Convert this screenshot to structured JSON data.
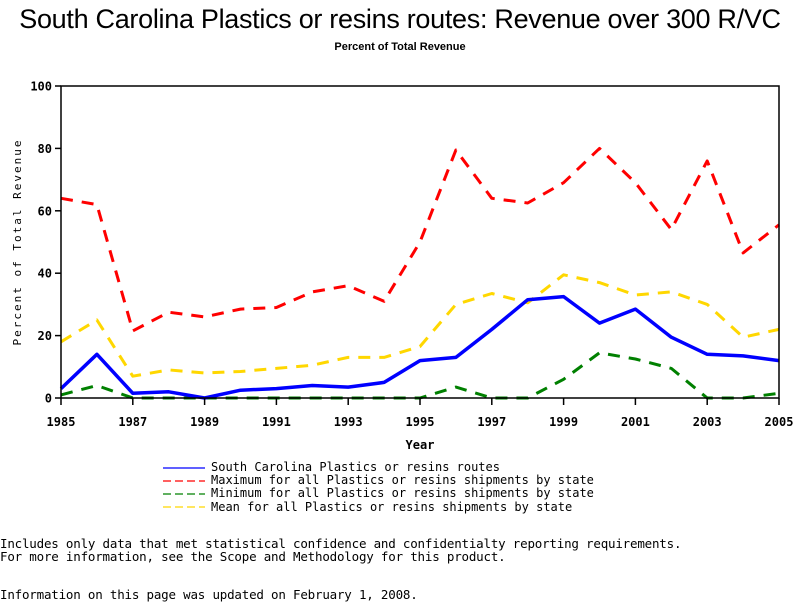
{
  "chart_data": {
    "type": "line",
    "title": "South Carolina Plastics or resins routes: Revenue over 300 R/VC",
    "subtitle": "Percent of Total Revenue",
    "xlabel": "Year",
    "ylabel": "Percent of Total Revenue",
    "xlim": [
      1985,
      2005
    ],
    "ylim": [
      0,
      100
    ],
    "x_ticks": [
      "1985",
      "1987",
      "1989",
      "1991",
      "1993",
      "1995",
      "1997",
      "1999",
      "2001",
      "2003",
      "2005"
    ],
    "y_ticks": [
      "0",
      "20",
      "40",
      "60",
      "80",
      "100"
    ],
    "x": [
      1985,
      1986,
      1987,
      1988,
      1989,
      1990,
      1991,
      1992,
      1993,
      1994,
      1995,
      1996,
      1997,
      1998,
      1999,
      2000,
      2001,
      2002,
      2003,
      2004,
      2005
    ],
    "grid": false,
    "legend_position": "bottom",
    "series": [
      {
        "name": "South Carolina Plastics or resins routes",
        "color": "#0000ff",
        "style": "solid",
        "values": [
          3,
          14,
          1.5,
          2,
          0,
          2.5,
          3,
          4,
          3.5,
          5,
          12,
          13,
          22,
          31.5,
          32.5,
          24,
          28.5,
          19.5,
          14,
          13.5,
          12
        ]
      },
      {
        "name": "Maximum for all Plastics or resins shipments by state",
        "color": "#ff0000",
        "style": "dashed",
        "values": [
          64,
          62,
          21.5,
          27.5,
          26,
          28.5,
          29,
          34,
          36,
          31,
          50,
          79.5,
          64,
          62.5,
          69,
          80,
          69,
          54,
          76,
          46.5,
          55.5
        ]
      },
      {
        "name": "Minimum for all Plastics or resins shipments by state",
        "color": "#008000",
        "style": "dashed",
        "values": [
          1,
          4,
          0,
          0,
          0,
          0,
          0,
          0,
          0,
          0,
          0,
          3.5,
          0,
          0,
          6,
          14.5,
          12.5,
          9.5,
          0,
          0,
          1.5
        ]
      },
      {
        "name": "Mean for all Plastics or resins shipments by state",
        "color": "#ffd700",
        "style": "dashed",
        "values": [
          18,
          25,
          7,
          9,
          8,
          8.5,
          9.5,
          10.5,
          13,
          13,
          16.5,
          30,
          33.5,
          30.5,
          39.5,
          37,
          33,
          34,
          30,
          19.5,
          22
        ]
      }
    ]
  },
  "notes": {
    "line1": "Includes only data that met statistical confidence and confidentialty reporting requirements.",
    "line2": "For more information, see the Scope and Methodology for this product.",
    "updated": "Information on this page was updated on February 1, 2008."
  }
}
